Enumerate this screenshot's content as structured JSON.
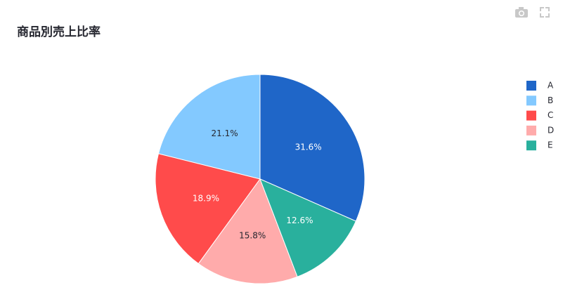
{
  "chart_data": {
    "type": "pie",
    "title": "商品別売上比率",
    "categories": [
      "A",
      "B",
      "C",
      "D",
      "E"
    ],
    "values": [
      31.6,
      21.1,
      18.9,
      15.8,
      12.6
    ],
    "value_labels": [
      "31.6%",
      "21.1%",
      "18.9%",
      "15.8%",
      "12.6%"
    ],
    "colors": [
      "#1f66c8",
      "#83c9ff",
      "#ff4b4b",
      "#ffabab",
      "#29b09d"
    ],
    "legend": "right"
  }
}
